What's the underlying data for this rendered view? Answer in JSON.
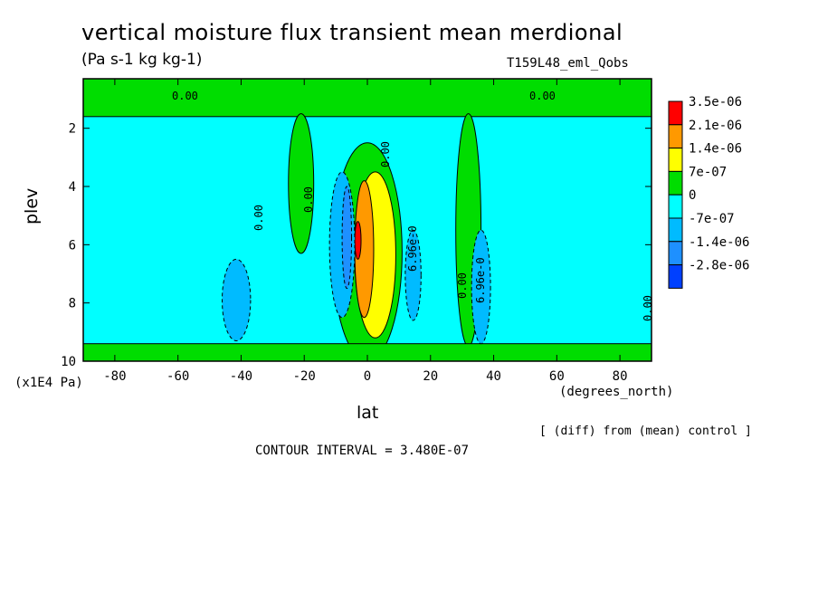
{
  "figure": {
    "title": "vertical moisture flux transient mean merdional",
    "units": "(Pa s-1 kg kg-1)",
    "run_label": "T159L48_eml_Qobs",
    "y_unit_label": "(x1E4 Pa)",
    "x_unit_label": "(degrees_north)",
    "x_axis_label": "lat",
    "y_axis_label": "plev",
    "note": "[ (diff) from (mean) control ]",
    "contour_interval": "CONTOUR INTERVAL = 3.480E-07"
  },
  "chart_data": {
    "type": "heatmap",
    "xlabel": "lat",
    "ylabel": "plev",
    "xlim": [
      -90,
      90
    ],
    "ylim": [
      10,
      0.3
    ],
    "x_ticks": [
      "-80",
      "-60",
      "-40",
      "-20",
      "0",
      "20",
      "40",
      "60",
      "80"
    ],
    "y_ticks": [
      "2",
      "4",
      "6",
      "8",
      "10"
    ],
    "colorbar": {
      "labels": [
        "3.5e-06",
        "2.1e-06",
        "1.4e-06",
        "7e-07",
        "0",
        "-7e-07",
        "-1.4e-06",
        "-2.8e-06"
      ],
      "colors": [
        "#ff0000",
        "#ff9900",
        "#ffff00",
        "#00dd00",
        "#00ffff",
        "#00bbff",
        "#1e90ff",
        "#0040ff"
      ]
    },
    "contour_labels": [
      "0.00",
      "0.00",
      "0.00",
      "0.00",
      "0.00",
      "0.00",
      "6.96e-0",
      "6.96e-0",
      "0.00"
    ],
    "background_color": "#00ffff",
    "regions": [
      {
        "level": "positive",
        "color": "#00dd00",
        "lat": [
          -90,
          90
        ],
        "plev": [
          0.3,
          1.6
        ],
        "note": "upper band"
      },
      {
        "level": "positive",
        "color": "#00dd00",
        "lat": [
          -25,
          -17
        ],
        "plev": [
          1.5,
          6.3
        ]
      },
      {
        "level": "positive",
        "color": "#00dd00",
        "lat": [
          -11,
          11
        ],
        "plev": [
          2.5,
          10
        ]
      },
      {
        "level": "positive",
        "color": "#00dd00",
        "lat": [
          28,
          36
        ],
        "plev": [
          1.5,
          9.5
        ]
      },
      {
        "level": "positive",
        "color": "#00dd00",
        "lat": [
          -90,
          90
        ],
        "plev": [
          9.4,
          10
        ],
        "note": "surface band"
      },
      {
        "level": "high",
        "color": "#ffff00",
        "lat": [
          -4,
          9
        ],
        "plev": [
          3.5,
          9.2
        ]
      },
      {
        "level": "higher",
        "color": "#ff9900",
        "lat": [
          -4,
          2
        ],
        "plev": [
          3.8,
          8.5
        ]
      },
      {
        "level": "max",
        "color": "#ff0000",
        "lat": [
          -4,
          -2
        ],
        "plev": [
          5.2,
          6.5
        ]
      },
      {
        "level": "negative",
        "color": "#00bbff",
        "lat": [
          -46,
          -37
        ],
        "plev": [
          6.5,
          9.3
        ]
      },
      {
        "level": "negative",
        "color": "#00bbff",
        "lat": [
          -12,
          -4
        ],
        "plev": [
          3.5,
          8.5
        ]
      },
      {
        "level": "negative",
        "color": "#00bbff",
        "lat": [
          12,
          17
        ],
        "plev": [
          5.5,
          8.6
        ]
      },
      {
        "level": "negative",
        "color": "#00bbff",
        "lat": [
          33,
          39
        ],
        "plev": [
          5.5,
          9.4
        ]
      },
      {
        "level": "low",
        "color": "#1e90ff",
        "lat": [
          -8,
          -5
        ],
        "plev": [
          4.0,
          7.5
        ]
      }
    ]
  }
}
